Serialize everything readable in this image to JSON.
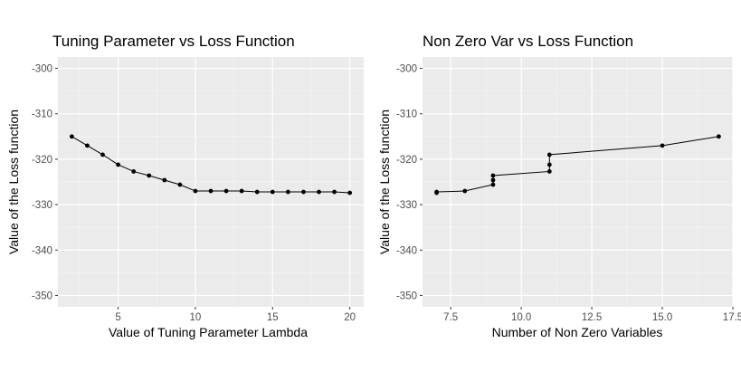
{
  "chart_data": [
    {
      "type": "line",
      "title": "Tuning Parameter vs Loss Function",
      "xlabel": "Value of Tuning Parameter Lambda",
      "ylabel": "Value of the Loss function",
      "xlim": [
        1.1,
        20.9
      ],
      "ylim": [
        -352.5,
        -297.5
      ],
      "x_ticks": [
        5,
        10,
        15,
        20
      ],
      "x_tick_labels": [
        "5",
        "10",
        "15",
        "20"
      ],
      "y_ticks": [
        -300,
        -310,
        -320,
        -330,
        -340,
        -350
      ],
      "y_tick_labels": [
        "-300",
        "-310",
        "-320",
        "-330",
        "-340",
        "-350"
      ],
      "grid": true,
      "x": [
        2,
        3,
        4,
        5,
        6,
        7,
        8,
        9,
        10,
        11,
        12,
        13,
        14,
        15,
        16,
        17,
        18,
        19,
        20
      ],
      "y": [
        -315.0,
        -317.0,
        -319.0,
        -321.2,
        -322.7,
        -323.6,
        -324.6,
        -325.6,
        -327.0,
        -327.0,
        -327.0,
        -327.0,
        -327.2,
        -327.2,
        -327.2,
        -327.2,
        -327.2,
        -327.2,
        -327.4
      ]
    },
    {
      "type": "line",
      "title": "Non Zero Var vs Loss Function",
      "xlabel": "Number of Non Zero Variables",
      "ylabel": "Value of the Loss function",
      "xlim": [
        6.5,
        17.5
      ],
      "ylim": [
        -352.5,
        -297.5
      ],
      "x_ticks": [
        7.5,
        10.0,
        12.5,
        15.0,
        17.5
      ],
      "x_tick_labels": [
        "7.5",
        "10.0",
        "12.5",
        "15.0",
        "17.5"
      ],
      "y_ticks": [
        -300,
        -310,
        -320,
        -330,
        -340,
        -350
      ],
      "y_tick_labels": [
        "-300",
        "-310",
        "-320",
        "-330",
        "-340",
        "-350"
      ],
      "grid": true,
      "x": [
        7,
        7,
        8,
        9,
        9,
        9,
        11,
        11,
        11,
        15,
        17
      ],
      "y": [
        -327.4,
        -327.2,
        -327.0,
        -325.6,
        -324.6,
        -323.6,
        -322.7,
        -321.2,
        -319.0,
        -317.0,
        -315.0
      ]
    }
  ]
}
